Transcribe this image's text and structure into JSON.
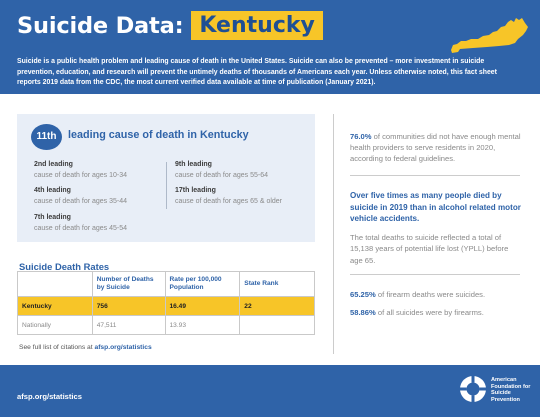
{
  "header": {
    "title": "Suicide Data:",
    "state": "Kentucky",
    "intro": "Suicide is a public health problem and leading cause of death in the United States. Suicide can also be prevented – more investment in suicide prevention, education, and research will prevent the untimely deaths of thousands of Americans each year. Unless otherwise noted, this fact sheet reports 2019 data from the CDC, the most current verified data available at time of publication (January 2021).",
    "map_icon": "kentucky-state-map-icon",
    "map_color": "#f7c528"
  },
  "leading_cause": {
    "rank": "11th",
    "text": "leading cause of death in Kentucky",
    "stats": [
      {
        "rank": "2nd leading",
        "desc": "cause of death for ages 10-34"
      },
      {
        "rank": "4th leading",
        "desc": "cause of death for ages 35-44"
      },
      {
        "rank": "7th leading",
        "desc": "cause of death for ages 45-54"
      },
      {
        "rank": "9th leading",
        "desc": "cause of death for ages 55-64"
      },
      {
        "rank": "17th leading",
        "desc": "cause of death for ages 65 & older"
      }
    ]
  },
  "rates": {
    "title": "Suicide Death Rates",
    "headers": [
      "",
      "Number of Deaths by Suicide",
      "Rate per 100,000 Population",
      "State Rank"
    ],
    "rows": [
      {
        "label": "Kentucky",
        "deaths": "756",
        "rate": "16.49",
        "rank": "22"
      },
      {
        "label": "Nationally",
        "deaths": "47,511",
        "rate": "13.93",
        "rank": ""
      }
    ]
  },
  "citation": {
    "prefix": "See full list of citations at",
    "link": "afsp.org/statistics"
  },
  "right": {
    "block1_pct": "76.0%",
    "block1_text": "of communities did not have enough mental health providers to serve residents in 2020, according to federal guidelines.",
    "block2_head": "Over five times as many people died by suicide in 2019 than in alcohol related motor vehicle accidents.",
    "block2_text": "The total deaths to suicide reflected a total of 15,138 years of potential life lost (YPLL) before age 65.",
    "block3_pct": "65.25%",
    "block3_text": "of firearm deaths were suicides.",
    "block4_pct": "58.86%",
    "block4_text": "of all suicides were by firearms."
  },
  "footer": {
    "link": "afsp.org/statistics",
    "org_name": "American Foundation for Suicide Prevention",
    "logo_icon": "afsp-lifesaver-logo-icon"
  },
  "colors": {
    "brand_blue": "#2f63a8",
    "accent_yellow": "#f7c528",
    "card_bg": "#e8eef7"
  }
}
